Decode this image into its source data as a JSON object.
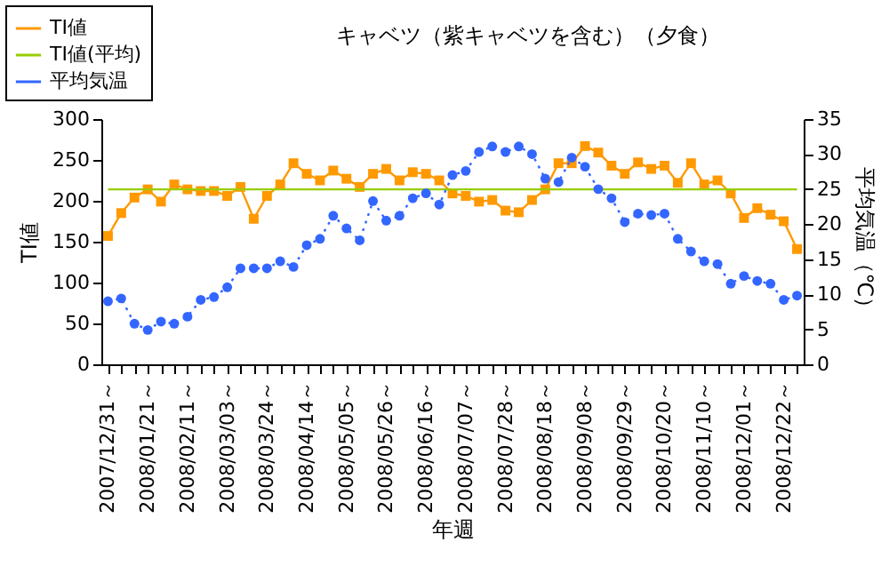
{
  "chart_data": {
    "type": "line",
    "title": "キャベツ（紫キャベツを含む）（夕食）",
    "xlabel": "年週",
    "ylabel": "TI値",
    "y2label": "平均気温（℃）",
    "categories": [
      "2007/12/31～",
      null,
      null,
      "2008/01/21～",
      null,
      null,
      "2008/02/11～",
      null,
      null,
      "2008/03/03～",
      null,
      null,
      "2008/03/24～",
      null,
      null,
      "2008/04/14～",
      null,
      null,
      "2008/05/05～",
      null,
      null,
      "2008/05/26～",
      null,
      null,
      "2008/06/16～",
      null,
      null,
      "2008/07/07～",
      null,
      null,
      "2008/07/28～",
      null,
      null,
      "2008/08/18～",
      null,
      null,
      "2008/09/08～",
      null,
      null,
      "2008/09/29～",
      null,
      null,
      "2008/10/20～",
      null,
      null,
      "2008/11/10～",
      null,
      null,
      "2008/12/01～",
      null,
      null,
      "2008/12/22～",
      null
    ],
    "series": [
      {
        "name": "TI値",
        "color": "#ff9900",
        "marker": "square",
        "line_style": "solid",
        "values": [
          157,
          185,
          204,
          214,
          199,
          220,
          214,
          212,
          212,
          206,
          217,
          178,
          206,
          220,
          246,
          233,
          225,
          237,
          227,
          217,
          233,
          239,
          225,
          235,
          233,
          225,
          209,
          206,
          199,
          201,
          188,
          186,
          201,
          214,
          246,
          246,
          267,
          259,
          243,
          233,
          247,
          239,
          243,
          222,
          246,
          220,
          225,
          209,
          179,
          191,
          183,
          175,
          141
        ]
      },
      {
        "name": "TI値(平均)",
        "color": "#99cc00",
        "marker": "none",
        "line_style": "solid",
        "values": [
          214,
          214,
          214,
          214,
          214,
          214,
          214,
          214,
          214,
          214,
          214,
          214,
          214,
          214,
          214,
          214,
          214,
          214,
          214,
          214,
          214,
          214,
          214,
          214,
          214,
          214,
          214,
          214,
          214,
          214,
          214,
          214,
          214,
          214,
          214,
          214,
          214,
          214,
          214,
          214,
          214,
          214,
          214,
          214,
          214,
          214,
          214,
          214,
          214,
          214,
          214,
          214,
          214
        ]
      },
      {
        "name": "平均気温",
        "color": "#3366ff",
        "marker": "circle",
        "line_style": "dotted",
        "axis": "y2",
        "values": [
          9.0,
          9.4,
          5.8,
          4.9,
          6.1,
          5.8,
          6.8,
          9.2,
          9.6,
          11.0,
          13.7,
          13.7,
          13.7,
          14.7,
          13.9,
          17.0,
          17.9,
          21.2,
          19.4,
          17.7,
          23.3,
          20.5,
          21.2,
          23.7,
          24.4,
          22.8,
          27.0,
          27.6,
          30.3,
          31.1,
          30.3,
          31.1,
          30.0,
          26.5,
          26.0,
          29.5,
          28.2,
          25.0,
          23.7,
          20.3,
          21.5,
          21.3,
          21.5,
          17.9,
          16.1,
          14.7,
          14.3,
          11.5,
          12.6,
          11.9,
          11.5,
          9.2,
          9.8
        ]
      }
    ],
    "ylim": [
      0,
      300
    ],
    "yticks": [
      0,
      50,
      100,
      150,
      200,
      250,
      300
    ],
    "y2lim": [
      0,
      35
    ],
    "y2ticks": [
      0,
      5,
      10,
      15,
      20,
      25,
      30,
      35
    ],
    "legend": "top left",
    "grid": false
  }
}
